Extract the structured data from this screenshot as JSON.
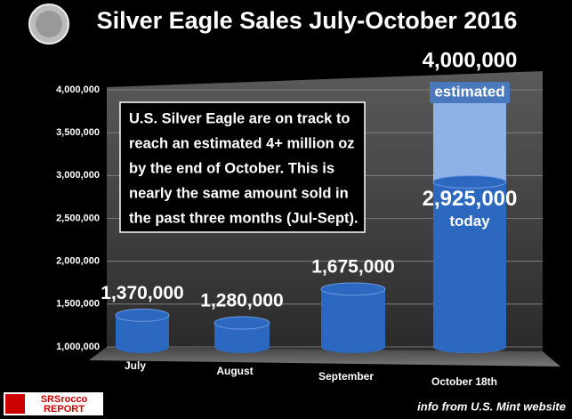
{
  "chart_data": {
    "type": "bar",
    "title": "Silver Eagle Sales July-October 2016",
    "categories": [
      "July",
      "August",
      "September",
      "October 18th"
    ],
    "series": [
      {
        "name": "today",
        "color": "#2d68c0",
        "values": [
          1370000,
          1280000,
          1675000,
          2925000
        ],
        "value_labels": [
          "1,370,000",
          "1,280,000",
          "1,675,000",
          "2,925,000"
        ]
      },
      {
        "name": "estimated",
        "color": "#8fb2e6",
        "values": [
          null,
          null,
          null,
          4000000
        ],
        "value_labels": [
          null,
          null,
          null,
          "4,000,000"
        ]
      }
    ],
    "ylim": [
      1000000,
      4000000
    ],
    "yticks": [
      {
        "value": 1000000,
        "label": "1,000,000"
      },
      {
        "value": 1500000,
        "label": "1,500,000"
      },
      {
        "value": 2000000,
        "label": "2,000,000"
      },
      {
        "value": 2500000,
        "label": "2,500,000"
      },
      {
        "value": 3000000,
        "label": "3,000,000"
      },
      {
        "value": 3500000,
        "label": "3,500,000"
      },
      {
        "value": 4000000,
        "label": "4,000,000"
      }
    ],
    "grid": true,
    "annotation": [
      "U.S. Silver Eagle are on track to",
      "reach an estimated 4+ million oz",
      "by the end of October.  This is",
      "nearly the same amount sold in",
      "the past three months (Jul-Sept)."
    ],
    "source": "info from U.S. Mint website",
    "logo": [
      "SRSrocco",
      "REPORT"
    ]
  }
}
